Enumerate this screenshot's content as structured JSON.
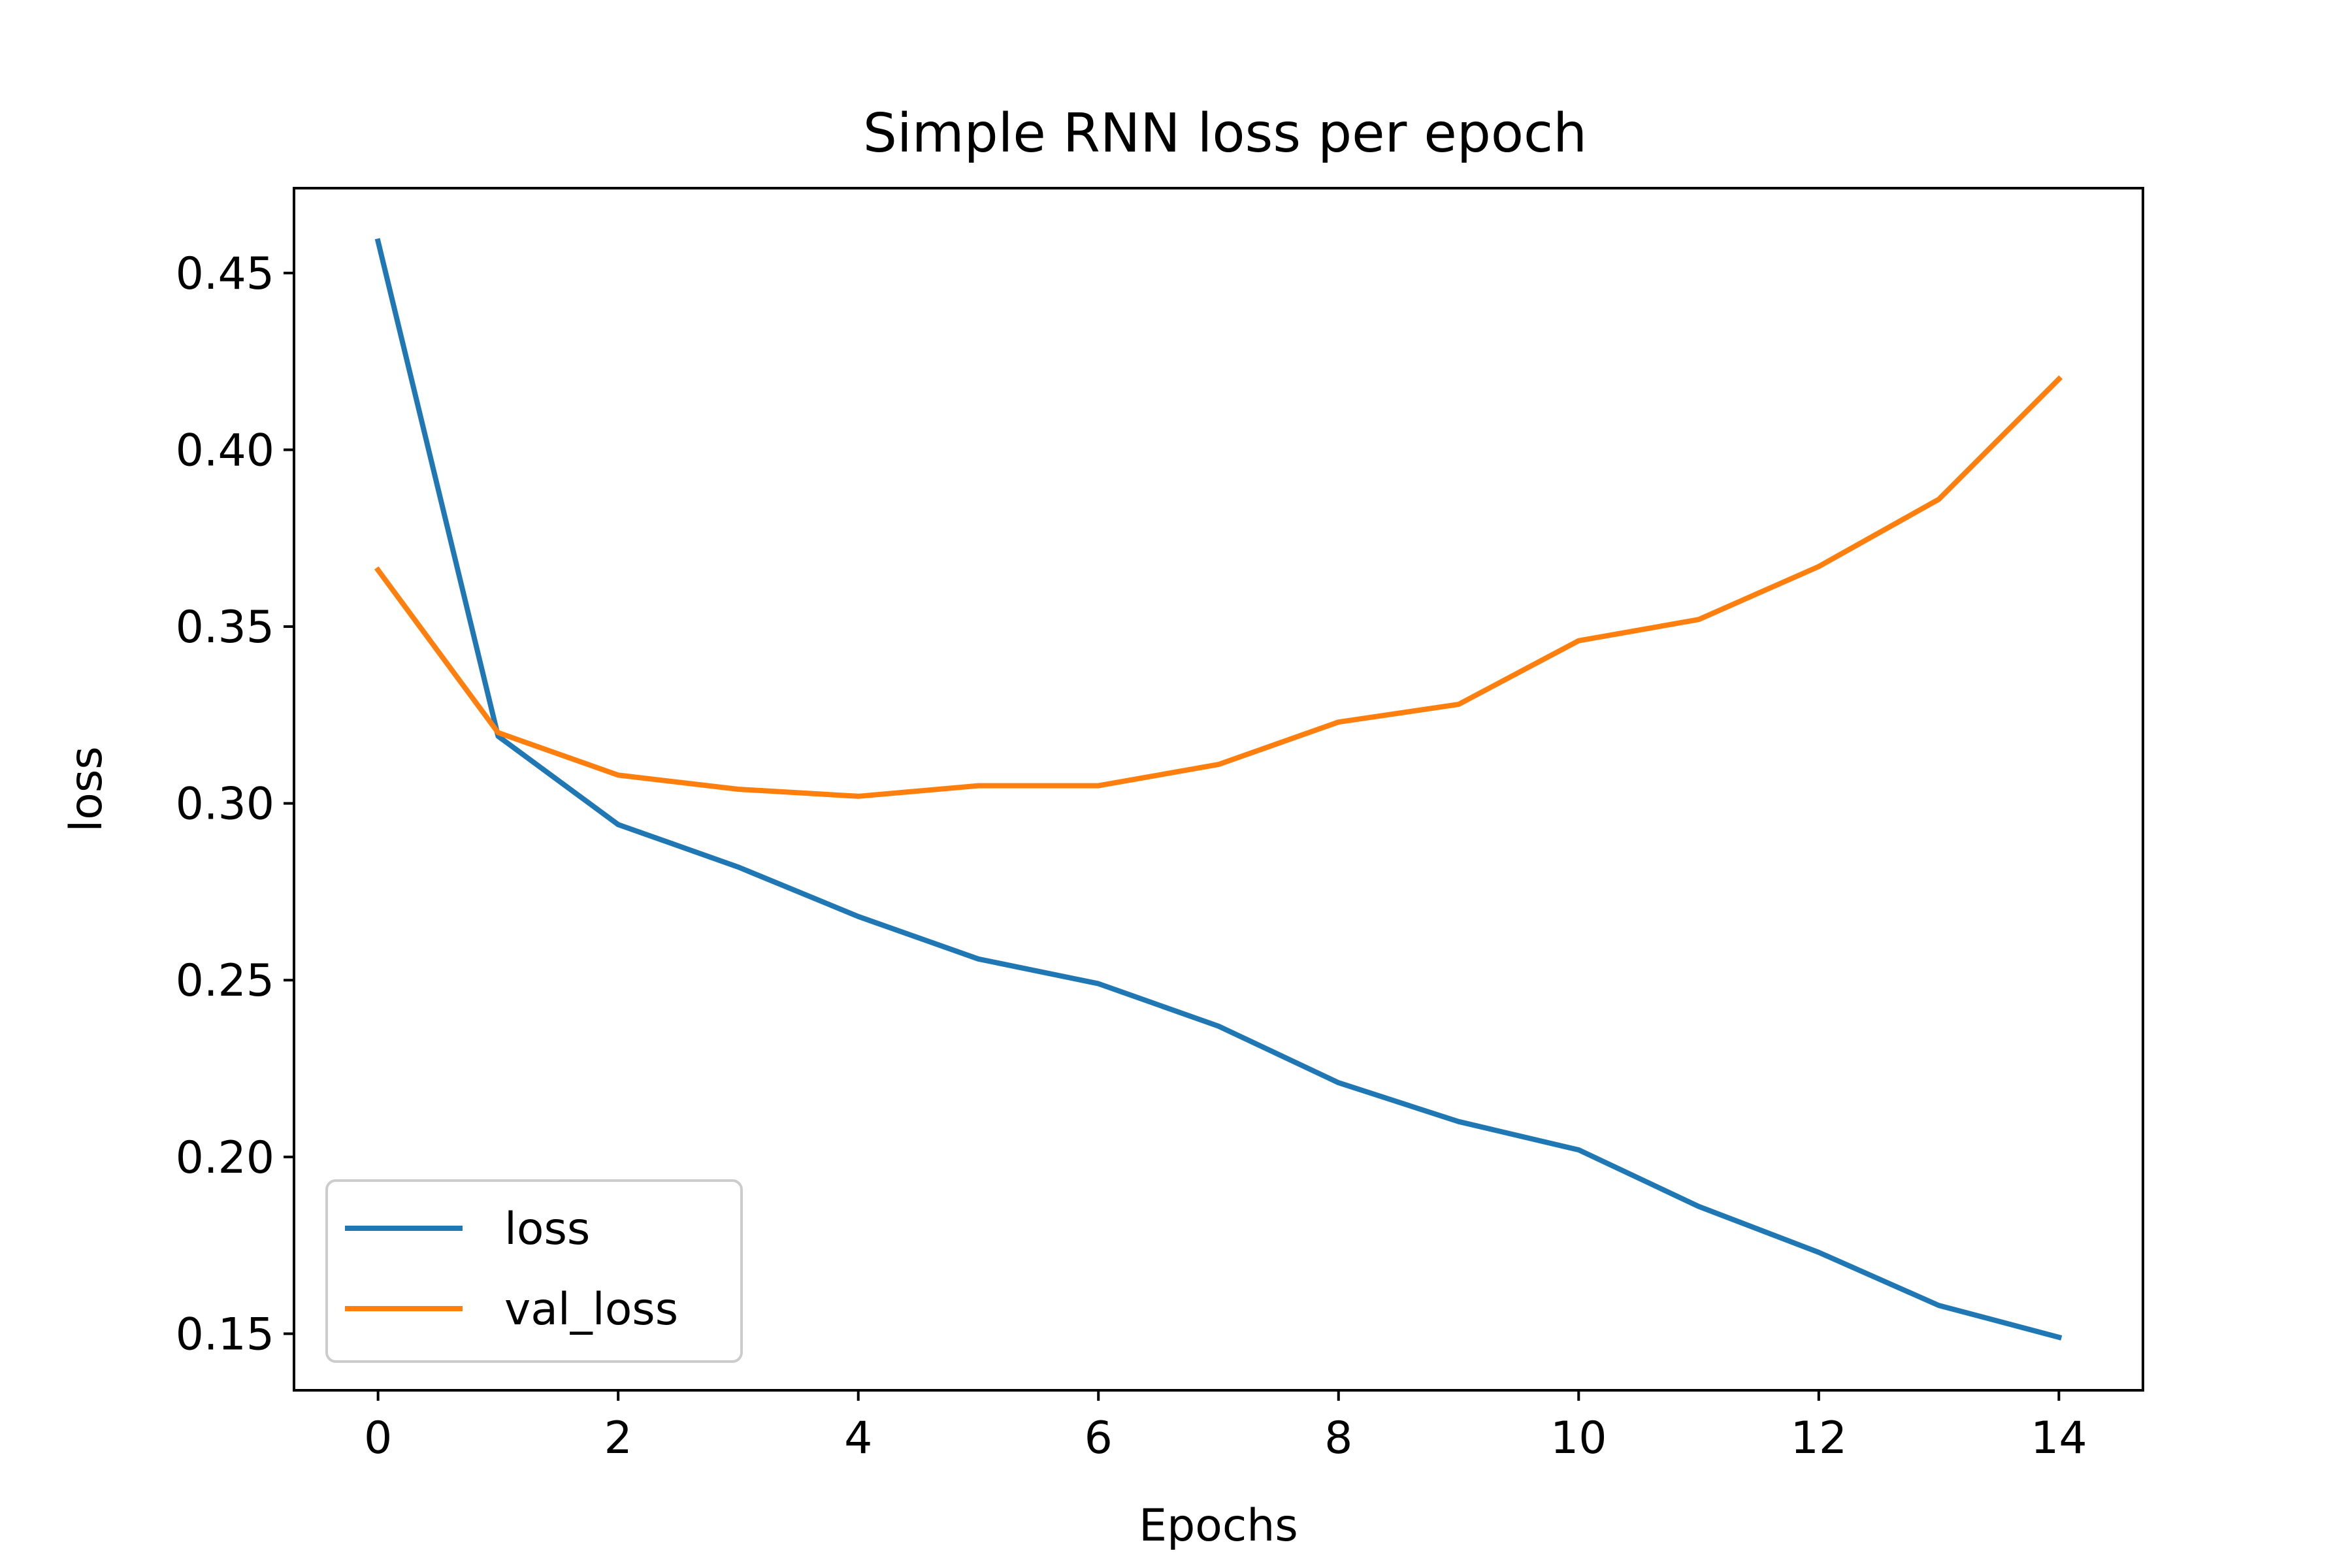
{
  "chart_data": {
    "type": "line",
    "title": "Simple RNN loss per epoch",
    "xlabel": "Epochs",
    "ylabel": "loss",
    "x": [
      0,
      1,
      2,
      3,
      4,
      5,
      6,
      7,
      8,
      9,
      10,
      11,
      12,
      13,
      14
    ],
    "xlim": [
      -0.7,
      14.7
    ],
    "ylim": [
      0.134,
      0.474
    ],
    "xticks": [
      0,
      2,
      4,
      6,
      8,
      10,
      12,
      14
    ],
    "xtick_labels": [
      "0",
      "2",
      "4",
      "6",
      "8",
      "10",
      "12",
      "14"
    ],
    "yticks": [
      0.15,
      0.2,
      0.25,
      0.3,
      0.35,
      0.4,
      0.45
    ],
    "ytick_labels": [
      "0.15",
      "0.20",
      "0.25",
      "0.30",
      "0.35",
      "0.40",
      "0.45"
    ],
    "grid": false,
    "legend_position": "lower-left",
    "series": [
      {
        "name": "loss",
        "color": "#1f77b4",
        "values": [
          0.459,
          0.319,
          0.294,
          0.282,
          0.268,
          0.256,
          0.249,
          0.237,
          0.221,
          0.21,
          0.202,
          0.186,
          0.173,
          0.158,
          0.149
        ]
      },
      {
        "name": "val_loss",
        "color": "#ff7f0e",
        "values": [
          0.366,
          0.32,
          0.308,
          0.304,
          0.302,
          0.305,
          0.305,
          0.311,
          0.323,
          0.328,
          0.346,
          0.352,
          0.367,
          0.386,
          0.42
        ]
      }
    ]
  }
}
